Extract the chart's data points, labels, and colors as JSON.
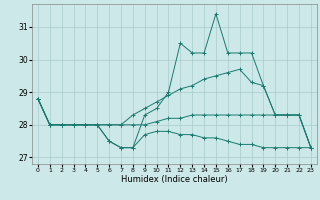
{
  "xlabel": "Humidex (Indice chaleur)",
  "x": [
    0,
    1,
    2,
    3,
    4,
    5,
    6,
    7,
    8,
    9,
    10,
    11,
    12,
    13,
    14,
    15,
    16,
    17,
    18,
    19,
    20,
    21,
    22,
    23
  ],
  "series": [
    [
      28.8,
      28.0,
      28.0,
      28.0,
      28.0,
      28.0,
      27.5,
      27.3,
      27.3,
      28.3,
      28.5,
      29.0,
      30.5,
      30.2,
      30.2,
      31.4,
      30.2,
      30.2,
      30.2,
      29.2,
      28.3,
      28.3,
      28.3,
      27.3
    ],
    [
      28.8,
      28.0,
      28.0,
      28.0,
      28.0,
      28.0,
      28.0,
      28.0,
      28.3,
      28.5,
      28.7,
      28.9,
      29.1,
      29.2,
      29.4,
      29.5,
      29.6,
      29.7,
      29.3,
      29.2,
      28.3,
      28.3,
      28.3,
      27.3
    ],
    [
      28.8,
      28.0,
      28.0,
      28.0,
      28.0,
      28.0,
      27.5,
      27.3,
      27.3,
      27.7,
      27.8,
      27.8,
      27.7,
      27.7,
      27.6,
      27.6,
      27.5,
      27.4,
      27.4,
      27.3,
      27.3,
      27.3,
      27.3,
      27.3
    ],
    [
      28.8,
      28.0,
      28.0,
      28.0,
      28.0,
      28.0,
      28.0,
      28.0,
      28.0,
      28.0,
      28.1,
      28.2,
      28.2,
      28.3,
      28.3,
      28.3,
      28.3,
      28.3,
      28.3,
      28.3,
      28.3,
      28.3,
      28.3,
      27.3
    ]
  ],
  "line_color": "#1a7a6e",
  "bg_color": "#cce8e8",
  "grid_color": "#aacccc",
  "ylim": [
    26.8,
    31.7
  ],
  "yticks": [
    27,
    28,
    29,
    30,
    31
  ],
  "xlim": [
    -0.5,
    23.5
  ],
  "xticks": [
    0,
    1,
    2,
    3,
    4,
    5,
    6,
    7,
    8,
    9,
    10,
    11,
    12,
    13,
    14,
    15,
    16,
    17,
    18,
    19,
    20,
    21,
    22,
    23
  ]
}
